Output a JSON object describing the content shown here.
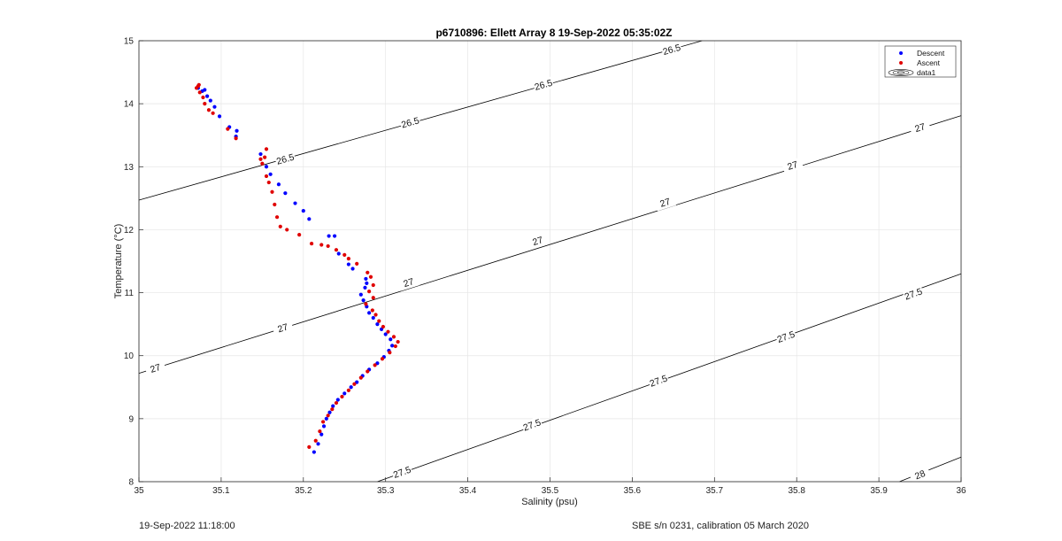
{
  "chart_data": {
    "type": "scatter",
    "title": "p6710896: Ellett Array 8 19-Sep-2022 05:35:02Z",
    "xlabel": "Salinity (psu)",
    "ylabel": "Temperature (°C)",
    "xlim": [
      35,
      36
    ],
    "ylim": [
      8,
      15
    ],
    "xticks": [
      "35",
      "35.1",
      "35.2",
      "35.3",
      "35.4",
      "35.5",
      "35.6",
      "35.7",
      "35.8",
      "35.9",
      "36"
    ],
    "yticks": [
      "8",
      "9",
      "10",
      "11",
      "12",
      "13",
      "14",
      "15"
    ],
    "grid": true,
    "legend": {
      "placement": "top-right",
      "entries": [
        "Descent",
        "Ascent",
        "data1"
      ]
    },
    "colors": {
      "descent": "#0000ff",
      "ascent": "#e00000",
      "contour": "#000000"
    },
    "density_contours": [
      {
        "sigma": "26.5",
        "line": [
          [
            35,
            12.47
          ],
          [
            35.685,
            15
          ]
        ],
        "labels": [
          [
            35.178,
            13.12
          ],
          [
            35.33,
            13.7
          ],
          [
            35.492,
            14.3
          ],
          [
            35.648,
            14.86
          ]
        ]
      },
      {
        "sigma": "27",
        "line": [
          [
            35,
            9.72
          ],
          [
            36,
            13.81
          ]
        ],
        "labels": [
          [
            35.02,
            9.8
          ],
          [
            35.175,
            10.44
          ],
          [
            35.328,
            11.16
          ],
          [
            35.485,
            11.82
          ],
          [
            35.64,
            12.43
          ],
          [
            35.795,
            13.02
          ],
          [
            35.95,
            13.62
          ]
        ]
      },
      {
        "sigma": "27.5",
        "line": [
          [
            35.29,
            8
          ],
          [
            36,
            11.3
          ]
        ],
        "labels": [
          [
            35.32,
            8.15
          ],
          [
            35.478,
            8.9
          ],
          [
            35.632,
            9.6
          ],
          [
            35.787,
            10.3
          ],
          [
            35.942,
            10.98
          ]
        ]
      },
      {
        "sigma": "28",
        "line": [
          [
            35.925,
            8
          ],
          [
            36,
            8.39
          ]
        ],
        "labels": [
          [
            35.95,
            8.11
          ]
        ]
      }
    ],
    "series": [
      {
        "name": "Descent",
        "points": [
          [
            35.213,
            8.47
          ],
          [
            35.218,
            8.6
          ],
          [
            35.222,
            8.75
          ],
          [
            35.225,
            8.88
          ],
          [
            35.228,
            9.0
          ],
          [
            35.232,
            9.1
          ],
          [
            35.236,
            9.2
          ],
          [
            35.242,
            9.3
          ],
          [
            35.25,
            9.4
          ],
          [
            35.258,
            9.5
          ],
          [
            35.265,
            9.58
          ],
          [
            35.272,
            9.68
          ],
          [
            35.28,
            9.78
          ],
          [
            35.29,
            9.88
          ],
          [
            35.298,
            9.98
          ],
          [
            35.304,
            10.08
          ],
          [
            35.308,
            10.16
          ],
          [
            35.306,
            10.26
          ],
          [
            35.3,
            10.34
          ],
          [
            35.295,
            10.42
          ],
          [
            35.29,
            10.5
          ],
          [
            35.285,
            10.6
          ],
          [
            35.28,
            10.68
          ],
          [
            35.277,
            10.78
          ],
          [
            35.273,
            10.88
          ],
          [
            35.27,
            10.97
          ],
          [
            35.275,
            11.08
          ],
          [
            35.277,
            11.15
          ],
          [
            35.276,
            11.22
          ],
          [
            35.26,
            11.38
          ],
          [
            35.255,
            11.45
          ],
          [
            35.243,
            11.62
          ],
          [
            35.238,
            11.9
          ],
          [
            35.231,
            11.9
          ],
          [
            35.207,
            12.17
          ],
          [
            35.2,
            12.3
          ],
          [
            35.19,
            12.42
          ],
          [
            35.178,
            12.58
          ],
          [
            35.17,
            12.72
          ],
          [
            35.16,
            12.88
          ],
          [
            35.155,
            13.0
          ],
          [
            35.148,
            13.2
          ],
          [
            35.118,
            13.48
          ],
          [
            35.119,
            13.57
          ],
          [
            35.11,
            13.63
          ],
          [
            35.098,
            13.8
          ],
          [
            35.092,
            13.95
          ],
          [
            35.087,
            14.05
          ],
          [
            35.083,
            14.12
          ],
          [
            35.077,
            14.2
          ],
          [
            35.08,
            14.22
          ],
          [
            35.072,
            14.25
          ]
        ]
      },
      {
        "name": "Ascent",
        "points": [
          [
            35.207,
            8.55
          ],
          [
            35.215,
            8.65
          ],
          [
            35.22,
            8.8
          ],
          [
            35.224,
            8.95
          ],
          [
            35.23,
            9.05
          ],
          [
            35.235,
            9.15
          ],
          [
            35.24,
            9.25
          ],
          [
            35.247,
            9.35
          ],
          [
            35.255,
            9.45
          ],
          [
            35.262,
            9.55
          ],
          [
            35.27,
            9.65
          ],
          [
            35.278,
            9.75
          ],
          [
            35.287,
            9.85
          ],
          [
            35.296,
            9.95
          ],
          [
            35.305,
            10.05
          ],
          [
            35.312,
            10.15
          ],
          [
            35.315,
            10.22
          ],
          [
            35.31,
            10.3
          ],
          [
            35.303,
            10.38
          ],
          [
            35.297,
            10.46
          ],
          [
            35.292,
            10.55
          ],
          [
            35.288,
            10.65
          ],
          [
            35.284,
            10.72
          ],
          [
            35.276,
            10.82
          ],
          [
            35.285,
            10.92
          ],
          [
            35.28,
            11.02
          ],
          [
            35.285,
            11.12
          ],
          [
            35.282,
            11.25
          ],
          [
            35.278,
            11.32
          ],
          [
            35.265,
            11.46
          ],
          [
            35.255,
            11.54
          ],
          [
            35.25,
            11.6
          ],
          [
            35.24,
            11.68
          ],
          [
            35.23,
            11.74
          ],
          [
            35.222,
            11.76
          ],
          [
            35.21,
            11.78
          ],
          [
            35.195,
            11.92
          ],
          [
            35.18,
            12.0
          ],
          [
            35.172,
            12.05
          ],
          [
            35.168,
            12.2
          ],
          [
            35.165,
            12.4
          ],
          [
            35.162,
            12.6
          ],
          [
            35.158,
            12.75
          ],
          [
            35.155,
            12.85
          ],
          [
            35.15,
            13.05
          ],
          [
            35.153,
            13.15
          ],
          [
            35.155,
            13.28
          ],
          [
            35.148,
            13.12
          ],
          [
            35.118,
            13.45
          ],
          [
            35.108,
            13.6
          ],
          [
            35.09,
            13.85
          ],
          [
            35.085,
            13.9
          ],
          [
            35.08,
            14.0
          ],
          [
            35.078,
            14.1
          ],
          [
            35.074,
            14.18
          ],
          [
            35.07,
            14.25
          ],
          [
            35.072,
            14.28
          ],
          [
            35.073,
            14.3
          ]
        ]
      }
    ]
  },
  "footer": {
    "left": "19-Sep-2022 11:18:00",
    "right": "SBE s/n 0231, calibration 05 March 2020"
  }
}
